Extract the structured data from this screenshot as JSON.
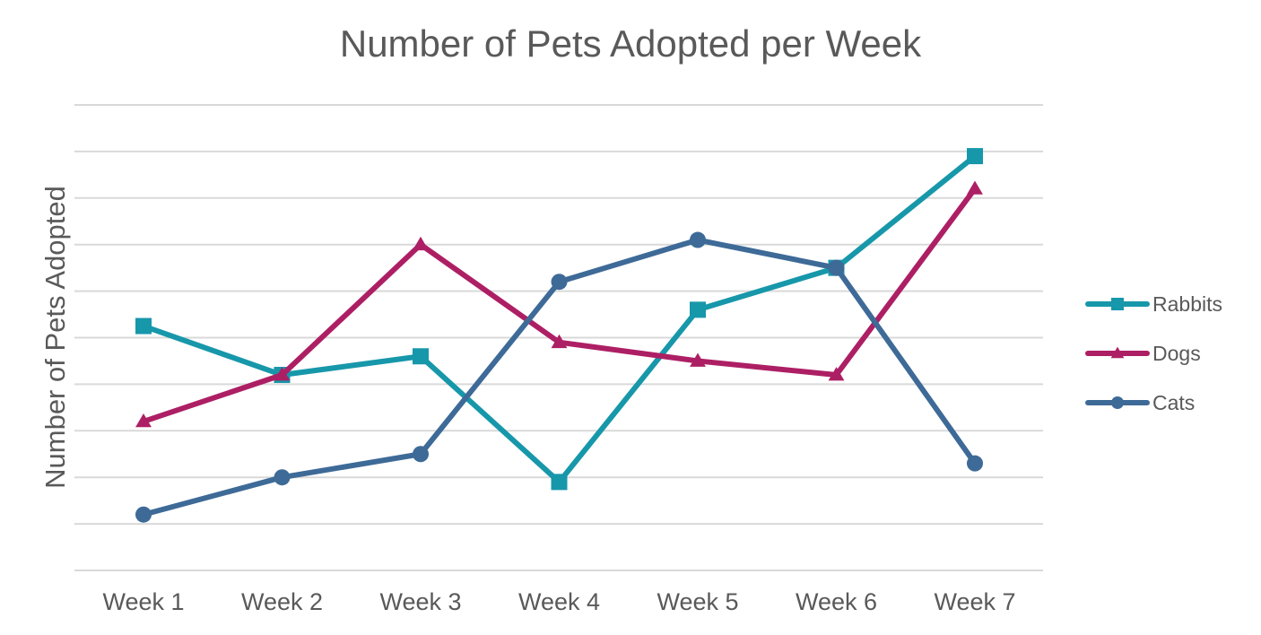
{
  "chart_data": {
    "type": "line",
    "title": "Number of Pets Adopted per Week",
    "xlabel": "",
    "ylabel": "Number of Pets Adopted",
    "categories": [
      "Week 1",
      "Week 2",
      "Week 3",
      "Week 4",
      "Week 5",
      "Week 6",
      "Week 7"
    ],
    "ylim": [
      0,
      10
    ],
    "gridlines": 11,
    "y_tick_labels_shown": false,
    "grid": true,
    "legend_position": "right",
    "series": [
      {
        "name": "Rabbits",
        "color": "#1797aa",
        "marker": "square",
        "values": [
          5.25,
          4.2,
          4.6,
          1.9,
          5.6,
          6.5,
          8.9
        ]
      },
      {
        "name": "Dogs",
        "color": "#ad1f64",
        "marker": "triangle",
        "values": [
          3.2,
          4.2,
          7.0,
          4.9,
          4.5,
          4.2,
          8.2
        ]
      },
      {
        "name": "Cats",
        "color": "#3e6a97",
        "marker": "circle",
        "values": [
          1.2,
          2.0,
          2.5,
          6.2,
          7.1,
          6.5,
          2.3
        ]
      }
    ]
  }
}
